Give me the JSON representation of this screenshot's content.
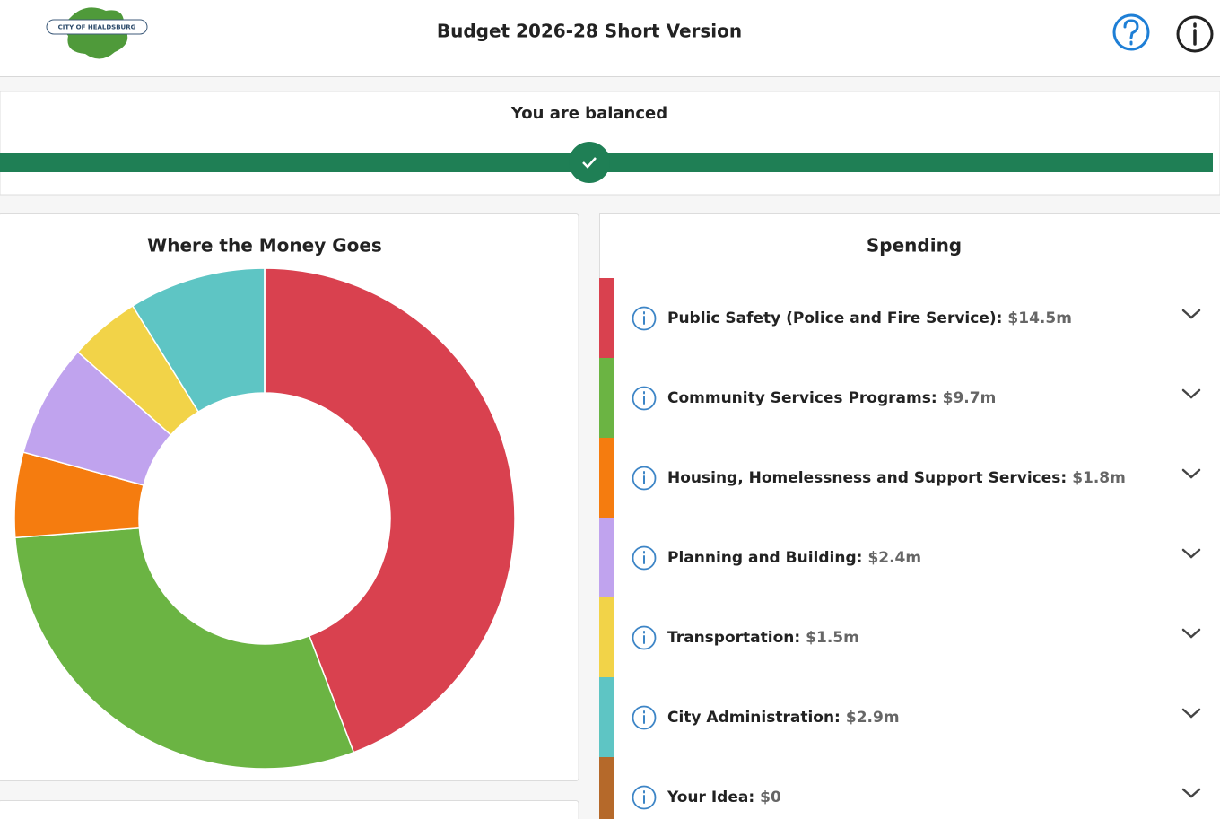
{
  "header": {
    "title": "Budget 2026-28 Short Version",
    "logo_text": "CITY OF HEALDSBURG"
  },
  "balance": {
    "status": "You are balanced"
  },
  "spending": {
    "title": "Spending"
  },
  "chart_data": {
    "type": "pie",
    "donut": true,
    "title": "Where the Money Goes",
    "categories": [
      "Public Safety (Police and Fire Service):",
      "Community Services Programs:",
      "Housing, Homelessness and Support Services:",
      "Planning and Building:",
      "Transportation:",
      "City Administration:",
      "Your Idea:"
    ],
    "values": [
      14.5,
      9.7,
      1.8,
      2.4,
      1.5,
      2.9,
      0
    ],
    "value_labels": [
      "$14.5m",
      "$9.7m",
      "$1.8m",
      "$2.4m",
      "$1.5m",
      "$2.9m",
      "$0"
    ],
    "colors": [
      "#d9414f",
      "#6bb443",
      "#f57c0f",
      "#c0a3ee",
      "#f2d348",
      "#5ec5c4",
      "#b5692a"
    ]
  }
}
